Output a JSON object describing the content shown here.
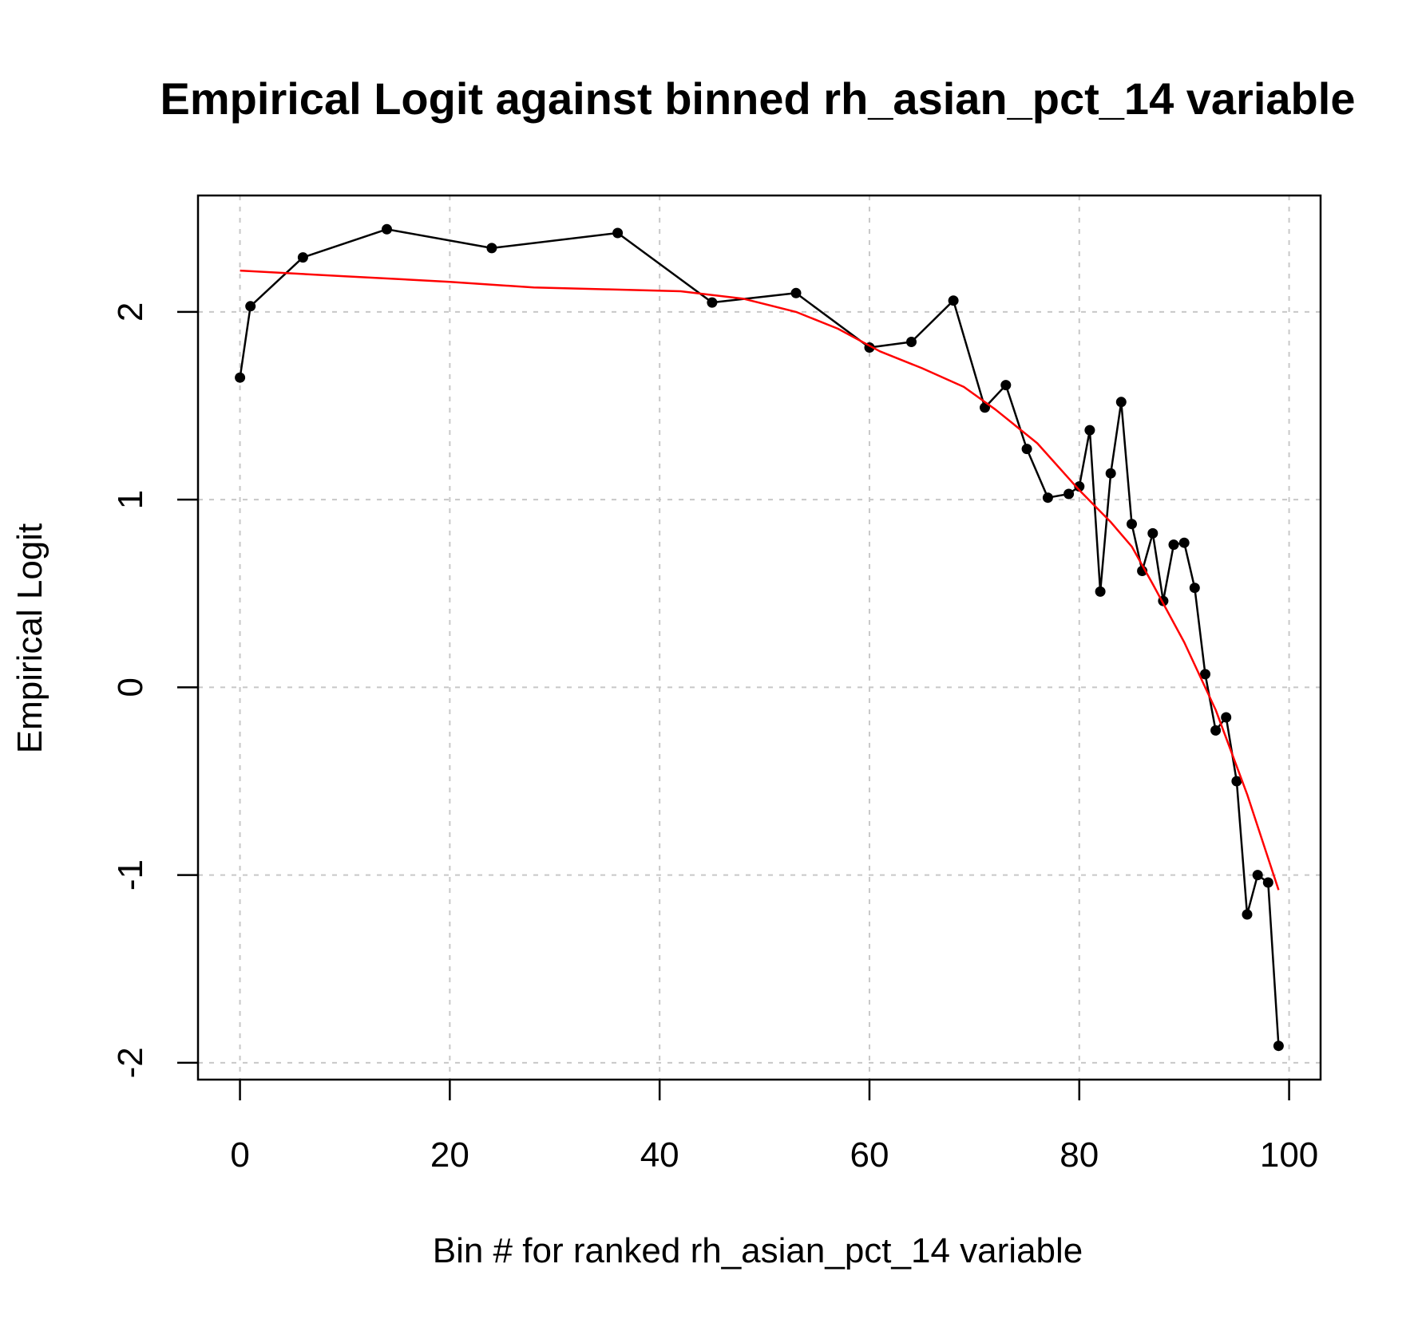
{
  "chart_data": {
    "type": "line",
    "title": "Empirical Logit against binned rh_asian_pct_14 variable",
    "xlabel": "Bin # for ranked rh_asian_pct_14 variable",
    "ylabel": "Empirical Logit",
    "xlim": [
      -4,
      103
    ],
    "ylim": [
      -2.09,
      2.62
    ],
    "x_ticks": [
      0,
      20,
      40,
      60,
      80,
      100
    ],
    "x_tick_labels": [
      "0",
      "20",
      "40",
      "60",
      "80",
      "100"
    ],
    "y_ticks": [
      -2,
      -1,
      0,
      1,
      2
    ],
    "y_tick_labels": [
      "-2",
      "-1",
      "0",
      "1",
      "2"
    ],
    "grid": true,
    "series": [
      {
        "style": "line-with-points",
        "color": "#000000",
        "x": [
          0,
          1,
          6,
          14,
          24,
          36,
          45,
          53,
          60,
          64,
          68,
          71,
          73,
          75,
          77,
          79,
          80,
          81,
          82,
          83,
          84,
          85,
          86,
          87,
          88,
          89,
          90,
          91,
          92,
          93,
          94,
          95,
          96,
          97,
          98,
          99
        ],
        "y": [
          1.65,
          2.03,
          2.29,
          2.44,
          2.34,
          2.42,
          2.05,
          2.1,
          1.81,
          1.84,
          2.06,
          1.49,
          1.61,
          1.27,
          1.01,
          1.03,
          1.07,
          1.37,
          0.51,
          1.14,
          1.52,
          0.87,
          0.62,
          0.82,
          0.46,
          0.76,
          0.77,
          0.53,
          0.07,
          -0.23,
          -0.16,
          -0.5,
          -1.21,
          -1.0,
          -1.04,
          -1.91
        ]
      },
      {
        "style": "smooth-line",
        "color": "#ff0000",
        "x": [
          0,
          10,
          20,
          28,
          35,
          42,
          48,
          53,
          57,
          61,
          65,
          69,
          72,
          76,
          80,
          83,
          85,
          87,
          90,
          93,
          96,
          99
        ],
        "y": [
          2.22,
          2.19,
          2.16,
          2.13,
          2.12,
          2.11,
          2.07,
          2.0,
          1.91,
          1.79,
          1.7,
          1.6,
          1.48,
          1.3,
          1.05,
          0.88,
          0.75,
          0.55,
          0.24,
          -0.12,
          -0.57,
          -1.08
        ]
      }
    ]
  }
}
